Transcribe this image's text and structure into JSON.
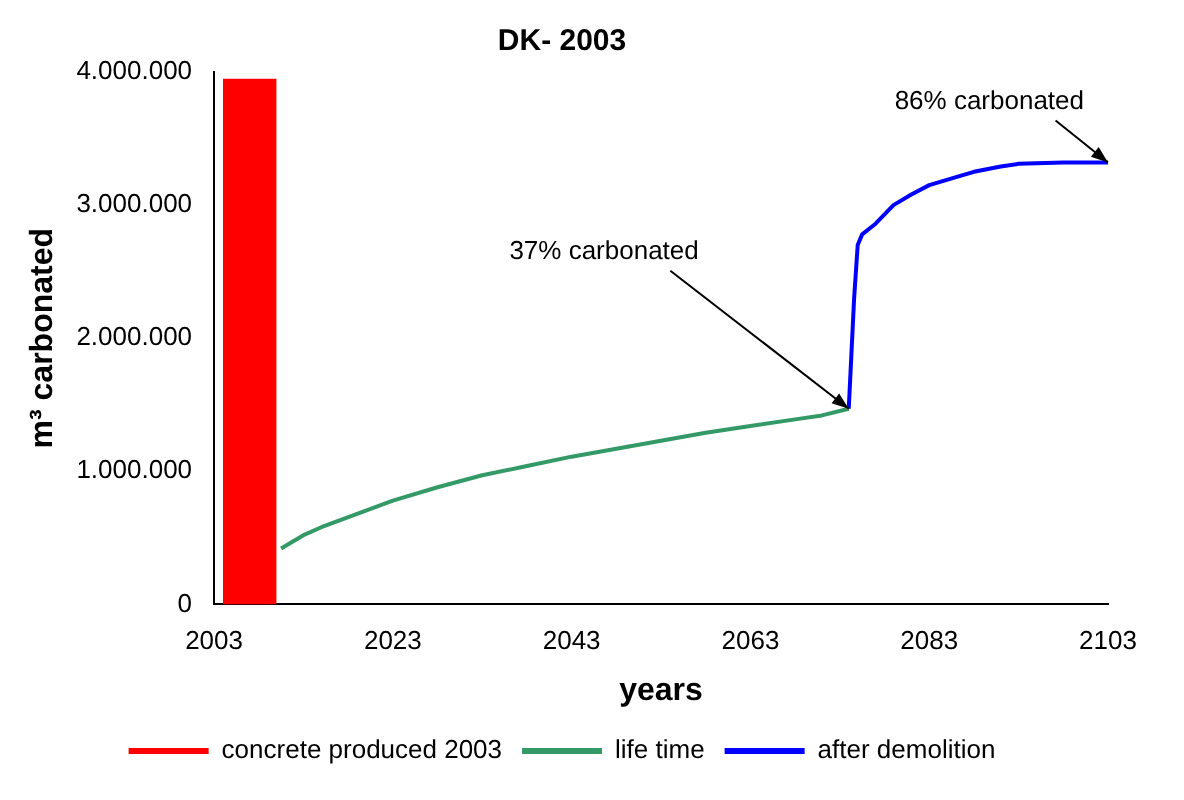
{
  "chart_data": {
    "type": "line",
    "title": "DK- 2003",
    "xlabel": "years",
    "ylabel": "m³ carbonated",
    "xlim": [
      2003,
      2103
    ],
    "xticks": [
      2003,
      2023,
      2043,
      2063,
      2083,
      2103
    ],
    "ylim": [
      0,
      4000000
    ],
    "yticks": [
      0,
      {
        "value": 1000000,
        "label": "1.000.000"
      },
      {
        "value": 2000000,
        "label": "2.000.000"
      },
      {
        "value": 3000000,
        "label": "3.000.000"
      },
      {
        "value": 4000000,
        "label": "4.000.000"
      }
    ],
    "grid": false,
    "legend": "bottom",
    "marker": "none",
    "series": [
      {
        "name": "concrete produced 2003",
        "type": "area",
        "color": "#ff0000",
        "x": [
          2004,
          2010
        ],
        "values": [
          3950000,
          3950000
        ]
      },
      {
        "name": "life time",
        "type": "line",
        "color": "#339966",
        "x": [
          2010.5,
          2013,
          2015,
          2019,
          2023,
          2028,
          2033,
          2038,
          2043,
          2048,
          2053,
          2058,
          2063,
          2068,
          2071,
          2074
        ],
        "values": [
          420000,
          520000,
          580000,
          680000,
          780000,
          880000,
          970000,
          1040000,
          1110000,
          1170000,
          1230000,
          1290000,
          1340000,
          1390000,
          1420000,
          1470000
        ]
      },
      {
        "name": "after demolition",
        "type": "line",
        "color": "#0000ff",
        "x": [
          2074,
          2074.6,
          2075,
          2075.5,
          2077,
          2079,
          2081,
          2083,
          2086,
          2088,
          2091,
          2093,
          2098,
          2103
        ],
        "values": [
          1470000,
          2300000,
          2700000,
          2780000,
          2860000,
          3000000,
          3080000,
          3150000,
          3210000,
          3250000,
          3290000,
          3310000,
          3320000,
          3320000
        ]
      }
    ],
    "annotations": [
      {
        "text": "37% carbonated",
        "x": 2074,
        "y": 1470000
      },
      {
        "text": "86% carbonated",
        "x": 2103,
        "y": 3320000
      }
    ]
  }
}
